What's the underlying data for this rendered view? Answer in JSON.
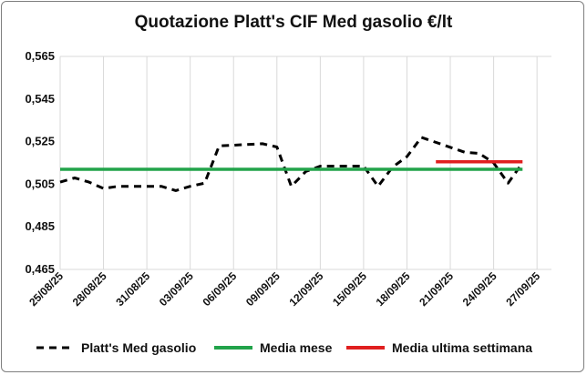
{
  "chart_data": {
    "type": "line",
    "title": "Quotazione Platt's CIF Med gasolio €/lt",
    "xlabel": "",
    "ylabel": "",
    "ylim": [
      0.465,
      0.565
    ],
    "yticks": [
      0.465,
      0.485,
      0.505,
      0.525,
      0.545,
      0.565
    ],
    "ytick_labels": [
      "0,465",
      "0,485",
      "0,505",
      "0,525",
      "0,545",
      "0,565"
    ],
    "xlim": [
      "2025-08-25",
      "2025-09-28"
    ],
    "xtick_labels": [
      "25/08/25",
      "28/08/25",
      "31/08/25",
      "03/09/25",
      "06/09/25",
      "09/09/25",
      "12/09/25",
      "15/09/25",
      "18/09/25",
      "21/09/25",
      "24/09/25",
      "27/09/25"
    ],
    "grid": "vertical",
    "legend_position": "bottom",
    "series": [
      {
        "name": "Platt's Med gasolio",
        "style": "dashed",
        "color": "#000000",
        "points": [
          [
            "2025-08-25",
            0.506
          ],
          [
            "2025-08-26",
            0.508
          ],
          [
            "2025-08-27",
            0.506
          ],
          [
            "2025-08-28",
            0.503
          ],
          [
            "2025-08-29",
            0.504
          ],
          [
            "2025-09-01",
            0.504
          ],
          [
            "2025-09-02",
            0.502
          ],
          [
            "2025-09-03",
            0.504
          ],
          [
            "2025-09-04",
            0.5055
          ],
          [
            "2025-09-05",
            0.523
          ],
          [
            "2025-09-08",
            0.524
          ],
          [
            "2025-09-09",
            0.5225
          ],
          [
            "2025-09-10",
            0.504
          ],
          [
            "2025-09-11",
            0.511
          ],
          [
            "2025-09-12",
            0.5135
          ],
          [
            "2025-09-15",
            0.5135
          ],
          [
            "2025-09-16",
            0.504
          ],
          [
            "2025-09-17",
            0.513
          ],
          [
            "2025-09-18",
            0.518
          ],
          [
            "2025-09-19",
            0.527
          ],
          [
            "2025-09-22",
            0.52
          ],
          [
            "2025-09-23",
            0.5195
          ],
          [
            "2025-09-24",
            0.515
          ],
          [
            "2025-09-25",
            0.5055
          ],
          [
            "2025-09-26",
            0.515
          ]
        ]
      },
      {
        "name": "Media mese",
        "style": "solid",
        "color": "#22a34a",
        "points": [
          [
            "2025-08-25",
            0.512
          ],
          [
            "2025-09-26",
            0.512
          ]
        ]
      },
      {
        "name": "Media ultima settimana",
        "style": "solid",
        "color": "#e01f1f",
        "points": [
          [
            "2025-09-20",
            0.5155
          ],
          [
            "2025-09-26",
            0.5155
          ]
        ]
      }
    ]
  }
}
